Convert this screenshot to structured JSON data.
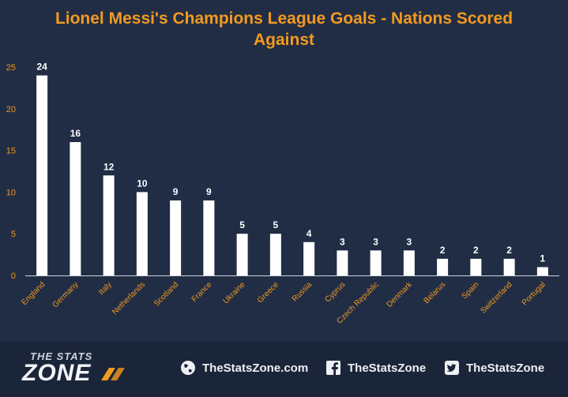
{
  "chart_data": {
    "type": "bar",
    "title": "Lionel Messi's Champions League Goals - Nations Scored Against",
    "title_lines": [
      "Lionel Messi's Champions League Goals - Nations Scored",
      "Against"
    ],
    "categories": [
      "England",
      "Germany",
      "Italy",
      "Netherlands",
      "Scotland",
      "France",
      "Ukraine",
      "Greece",
      "Russia",
      "Cyprus",
      "Czech Republic",
      "Denmark",
      "Belarus",
      "Spain",
      "Switzerland",
      "Portugal"
    ],
    "values": [
      24,
      16,
      12,
      10,
      9,
      9,
      5,
      5,
      4,
      3,
      3,
      3,
      2,
      2,
      2,
      1
    ],
    "ylim": [
      0,
      25
    ],
    "yticks": [
      0,
      5,
      10,
      15,
      20,
      25
    ],
    "xlabel": "",
    "ylabel": "",
    "grid": false,
    "legend": "none",
    "colors": {
      "bar": "#ffffff",
      "title": "#f39a1f",
      "tick_label": "#f39a1f",
      "axis": "#cfd4dc",
      "data_label": "#ffffff",
      "background": "#212d45"
    }
  },
  "footer": {
    "logo_small": "THE STATS",
    "logo_big": "ZONE",
    "website": "TheStatsZone.com",
    "facebook": "TheStatsZone",
    "twitter": "TheStatsZone",
    "icons": {
      "website": "globe-icon",
      "facebook": "facebook-icon",
      "twitter": "twitter-icon"
    }
  }
}
